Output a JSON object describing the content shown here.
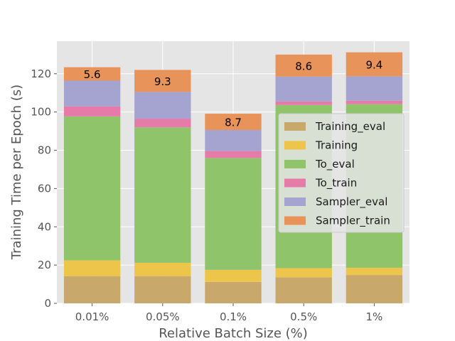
{
  "chart_data": {
    "type": "bar",
    "stacked": true,
    "categories": [
      "0.01%",
      "0.05%",
      "0.1%",
      "0.5%",
      "1%"
    ],
    "xlabel": "Relative Batch Size (%)",
    "ylabel": "Training Time per Epoch (s)",
    "ylim": [
      0,
      137
    ],
    "yticks": [
      0,
      20,
      40,
      60,
      80,
      100,
      120
    ],
    "grid": true,
    "legend_position": "center-right",
    "series": [
      {
        "name": "Training_eval",
        "color": "#c8a86b",
        "values": [
          14.2,
          14.2,
          11.2,
          13.6,
          14.8
        ]
      },
      {
        "name": "Training",
        "color": "#ecc54a",
        "values": [
          8.3,
          7.0,
          6.3,
          4.8,
          3.8
        ]
      },
      {
        "name": "To_eval",
        "color": "#8fc46a",
        "values": [
          75.2,
          70.8,
          58.5,
          85.3,
          85.5
        ]
      },
      {
        "name": "To_train",
        "color": "#e67aa8",
        "values": [
          5.2,
          4.5,
          3.6,
          1.8,
          1.8
        ]
      },
      {
        "name": "Sampler_eval",
        "color": "#a5a3cf",
        "values": [
          13.5,
          14.0,
          11.0,
          13.0,
          12.8
        ]
      },
      {
        "name": "Sampler_train",
        "color": "#e8935a",
        "values": [
          7.0,
          11.5,
          8.5,
          11.5,
          12.5
        ]
      }
    ],
    "bar_labels": [
      "5.6",
      "9.3",
      "8.7",
      "8.6",
      "9.4"
    ]
  }
}
